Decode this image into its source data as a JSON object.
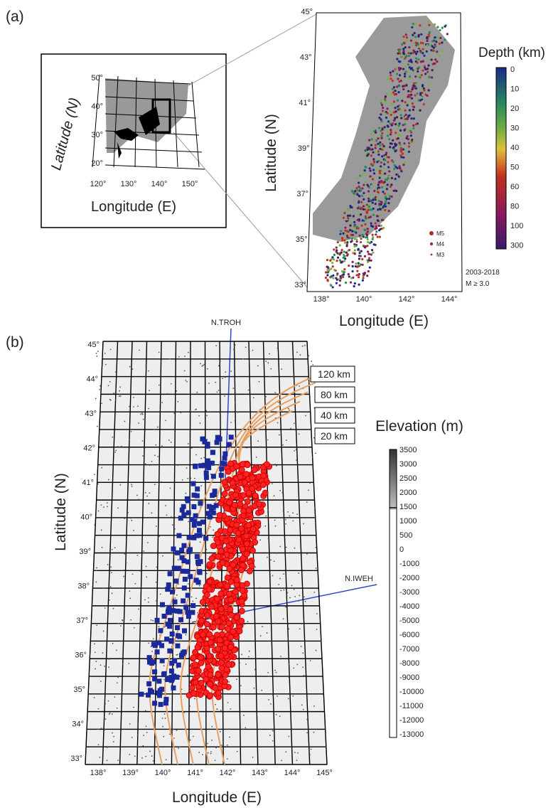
{
  "panel_a": {
    "label": "(a)",
    "inset": {
      "lat_labels": [
        "50°",
        "40°",
        "30°",
        "20°"
      ],
      "lon_labels": [
        "120°",
        "130°",
        "140°",
        "150°"
      ],
      "ylabel": "Latitude (N)",
      "xlabel": "Longitude (E)"
    },
    "map": {
      "lat_labels": [
        "45°",
        "43°",
        "41°",
        "39°",
        "37°",
        "35°",
        "33°"
      ],
      "lon_labels": [
        "138°",
        "140°",
        "142°",
        "144°"
      ],
      "ylabel": "Latitude (N)",
      "xlabel": "Longitude (E)",
      "legend": [
        "M5",
        "M4",
        "M3"
      ],
      "period": "2003-2018",
      "magnitude": "M ≥ 3.0"
    },
    "colorbar": {
      "title": "Depth (km)",
      "ticks": [
        0,
        10,
        20,
        30,
        40,
        50,
        60,
        80,
        100,
        300
      ]
    }
  },
  "panel_b": {
    "label": "(b)",
    "stations": [
      "N.TROH",
      "N.IWEH"
    ],
    "lat_labels": [
      "45°",
      "44°",
      "43°",
      "42°",
      "41°",
      "40°",
      "39°",
      "38°",
      "37°",
      "36°",
      "35°",
      "34°",
      "33°"
    ],
    "lon_labels": [
      "138°",
      "139°",
      "140°",
      "141°",
      "142°",
      "143°",
      "144°",
      "145°"
    ],
    "contour_labels": [
      "120 km",
      "80 km",
      "40 km",
      "20 km"
    ],
    "ylabel": "Latitude (N)",
    "xlabel": "Longitude (E)",
    "colorbar": {
      "title": "Elevation (m)",
      "ticks": [
        3500,
        3000,
        2500,
        2000,
        1500,
        1000,
        500,
        0,
        -1000,
        -2000,
        -3000,
        -4000,
        -5000,
        -6000,
        -7000,
        -8000,
        -9000,
        -10000,
        -11000,
        -12000,
        -13000
      ]
    }
  }
}
